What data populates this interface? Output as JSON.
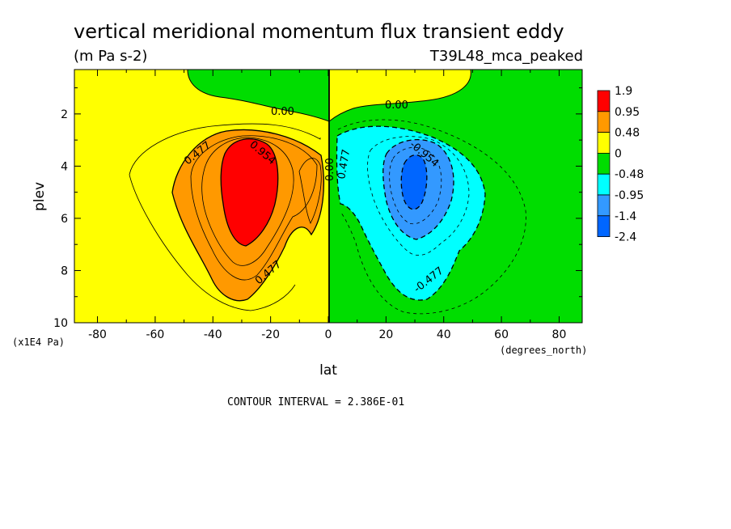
{
  "chart_data": {
    "type": "heatmap",
    "title": "vertical meridional momentum flux transient eddy",
    "units": "(m Pa s-2)",
    "run_label": "T39L48_mca_peaked",
    "xlabel": "lat",
    "x_units": "(degrees_north)",
    "ylabel": "plev",
    "y_units": "(x1E4 Pa)",
    "xlim": [
      -88,
      88
    ],
    "ylim": [
      10,
      0.3
    ],
    "x_ticks": [
      -80,
      -60,
      -40,
      -20,
      0,
      20,
      40,
      60,
      80
    ],
    "x_tick_labels": [
      "-80",
      "-60",
      "-40",
      "-20",
      "0",
      "20",
      "40",
      "60",
      "80"
    ],
    "y_ticks": [
      2,
      4,
      6,
      8,
      10
    ],
    "y_tick_labels": [
      "2",
      "4",
      "6",
      "8",
      "10"
    ],
    "contour_interval_text": "CONTOUR INTERVAL = 2.386E-01",
    "contour_labels": [
      "0.00",
      "0.00",
      "0.477",
      "0.954",
      "0.477",
      "-0.954",
      "-0.477",
      "0.00",
      "0.477",
      "-0.477"
    ],
    "colorbar": {
      "levels": [
        "1.9",
        "0.95",
        "0.48",
        "0",
        "-0.48",
        "-0.95",
        "-1.4",
        "-2.4"
      ],
      "colors": [
        "#ff0000",
        "#ff9900",
        "#ffff00",
        "#00dd00",
        "#00ffff",
        "#3399ff",
        "#0066ff"
      ]
    },
    "fill_colors": {
      "red": "#ff0000",
      "orange": "#ff9900",
      "yellow": "#ffff00",
      "green": "#00dd00",
      "cyan": "#00ffff",
      "light_blue": "#3399ff",
      "blue": "#0066ff"
    },
    "extrema": {
      "max": {
        "lat": -28,
        "plev": 4.5
      },
      "min": {
        "lat": 29,
        "plev": 4.1
      }
    }
  }
}
